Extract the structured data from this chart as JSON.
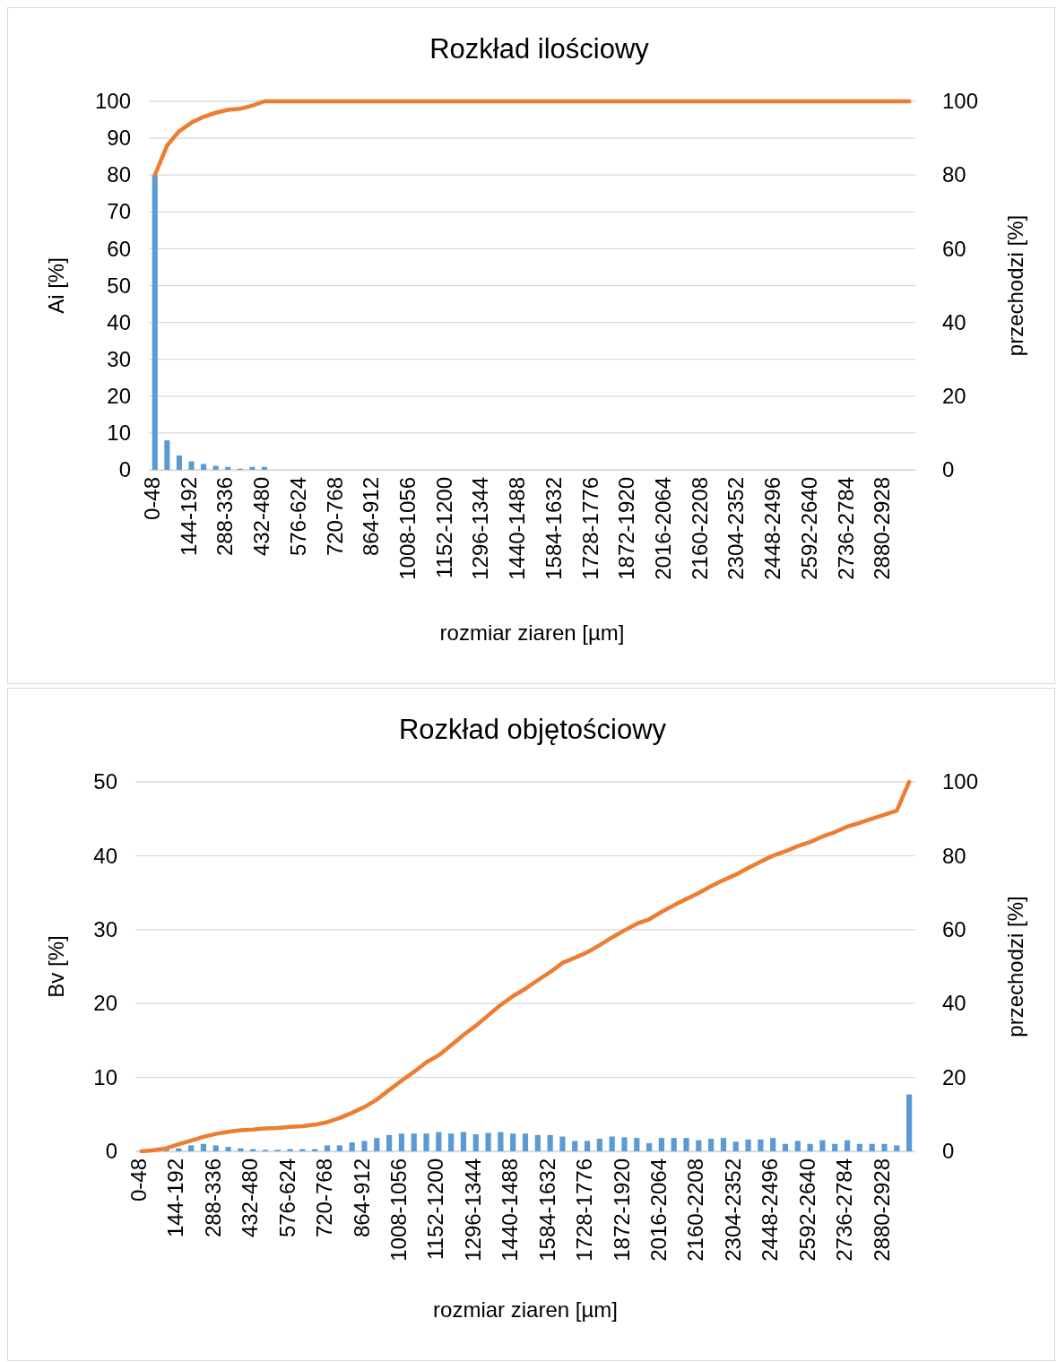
{
  "chart_data": [
    {
      "type": "bar",
      "title": "Rozkład ilościowy",
      "xlabel": "rozmiar ziaren [µm]",
      "ylabel": "Ai [%]",
      "y2label": "przechodzi [%]",
      "categories": [
        "0-48",
        null,
        null,
        "144-192",
        null,
        null,
        "288-336",
        null,
        null,
        "432-480",
        null,
        null,
        "576-624",
        null,
        null,
        "720-768",
        null,
        null,
        "864-912",
        null,
        null,
        "1008-1056",
        null,
        null,
        "1152-1200",
        null,
        null,
        "1296-1344",
        null,
        null,
        "1440-1488",
        null,
        null,
        "1584-1632",
        null,
        null,
        "1728-1776",
        null,
        null,
        "1872-1920",
        null,
        null,
        "2016-2064",
        null,
        null,
        "2160-2208",
        null,
        null,
        "2304-2352",
        null,
        null,
        "2448-2496",
        null,
        null,
        "2592-2640",
        null,
        null,
        "2736-2784",
        null,
        null,
        "2880-2928",
        null,
        null
      ],
      "series": [
        {
          "color": "#5b9bd5",
          "values": [
            80,
            8,
            3.9,
            2.3,
            1.6,
            1.1,
            0.8,
            0.3,
            0.8,
            0.8,
            0,
            0,
            0,
            0,
            0,
            0,
            0,
            0,
            0,
            0,
            0,
            0,
            0,
            0,
            0,
            0,
            0,
            0,
            0,
            0,
            0,
            0,
            0,
            0,
            0,
            0,
            0,
            0,
            0,
            0,
            0,
            0,
            0,
            0,
            0,
            0,
            0,
            0,
            0,
            0,
            0,
            0,
            0,
            0,
            0,
            0,
            0,
            0,
            0,
            0,
            0,
            0,
            0
          ]
        },
        {
          "type": "line",
          "axis": "y2",
          "color": "#ed7d31",
          "values": [
            80,
            88,
            91.9,
            94.2,
            95.8,
            96.9,
            97.7,
            98,
            98.8,
            100,
            100,
            100,
            100,
            100,
            100,
            100,
            100,
            100,
            100,
            100,
            100,
            100,
            100,
            100,
            100,
            100,
            100,
            100,
            100,
            100,
            100,
            100,
            100,
            100,
            100,
            100,
            100,
            100,
            100,
            100,
            100,
            100,
            100,
            100,
            100,
            100,
            100,
            100,
            100,
            100,
            100,
            100,
            100,
            100,
            100,
            100,
            100,
            100,
            100,
            100,
            100,
            100,
            100
          ]
        }
      ],
      "ylim": [
        0,
        100
      ],
      "yticks": [
        0,
        10,
        20,
        30,
        40,
        50,
        60,
        70,
        80,
        90,
        100
      ],
      "y2lim": [
        0,
        100
      ],
      "y2ticks": [
        0,
        20,
        40,
        60,
        80,
        100
      ],
      "grid": "y"
    },
    {
      "type": "bar",
      "title": "Rozkład objętościowy",
      "xlabel": "rozmiar ziaren [µm]",
      "ylabel": "Bv [%]",
      "y2label": "przechodzi [%]",
      "categories": [
        "0-48",
        null,
        null,
        "144-192",
        null,
        null,
        "288-336",
        null,
        null,
        "432-480",
        null,
        null,
        "576-624",
        null,
        null,
        "720-768",
        null,
        null,
        "864-912",
        null,
        null,
        "1008-1056",
        null,
        null,
        "1152-1200",
        null,
        null,
        "1296-1344",
        null,
        null,
        "1440-1488",
        null,
        null,
        "1584-1632",
        null,
        null,
        "1728-1776",
        null,
        null,
        "1872-1920",
        null,
        null,
        "2016-2064",
        null,
        null,
        "2160-2208",
        null,
        null,
        "2304-2352",
        null,
        null,
        "2448-2496",
        null,
        null,
        "2592-2640",
        null,
        null,
        "2736-2784",
        null,
        null,
        "2880-2928",
        null,
        null
      ],
      "series": [
        {
          "color": "#5b9bd5",
          "values": [
            0,
            0.1,
            0.3,
            0.4,
            0.8,
            1,
            0.8,
            0.6,
            0.4,
            0.3,
            0.2,
            0.2,
            0.3,
            0.3,
            0.3,
            0.8,
            0.8,
            1.2,
            1.4,
            1.8,
            2.2,
            2.4,
            2.4,
            2.4,
            2.6,
            2.4,
            2.6,
            2.3,
            2.5,
            2.6,
            2.4,
            2.4,
            2.2,
            2.2,
            2.0,
            1.4,
            1.4,
            1.7,
            2.0,
            1.9,
            1.8,
            1.1,
            1.8,
            1.8,
            1.8,
            1.5,
            1.7,
            1.8,
            1.3,
            1.6,
            1.6,
            1.8,
            1,
            1.4,
            1.0,
            1.5,
            1.0,
            1.5,
            1.0,
            1.0,
            1.0,
            0.8,
            7.7
          ]
        },
        {
          "type": "line",
          "axis": "y2",
          "color": "#ed7d31",
          "values": [
            0,
            0.3,
            0.8,
            1.9,
            2.9,
            3.9,
            4.7,
            5.3,
            5.7,
            5.9,
            6.2,
            6.3,
            6.6,
            6.8,
            7.2,
            7.9,
            9,
            10.4,
            12,
            14,
            16.6,
            19.1,
            21.5,
            24.1,
            26,
            28.7,
            31.5,
            34,
            36.8,
            39.6,
            42,
            44,
            46.3,
            48.5,
            51,
            52.4,
            53.9,
            55.8,
            57.9,
            59.8,
            61.6,
            62.8,
            64.8,
            66.6,
            68.3,
            69.9,
            71.8,
            73.4,
            74.9,
            76.7,
            78.4,
            80,
            81.2,
            82.6,
            83.7,
            85.2,
            86.4,
            87.9,
            88.9,
            90,
            91.1,
            92.2,
            100
          ]
        }
      ],
      "ylim": [
        0,
        50
      ],
      "yticks": [
        0,
        10,
        20,
        30,
        40,
        50
      ],
      "y2lim": [
        0,
        100
      ],
      "y2ticks": [
        0,
        20,
        40,
        60,
        80,
        100
      ],
      "grid": "y"
    }
  ]
}
